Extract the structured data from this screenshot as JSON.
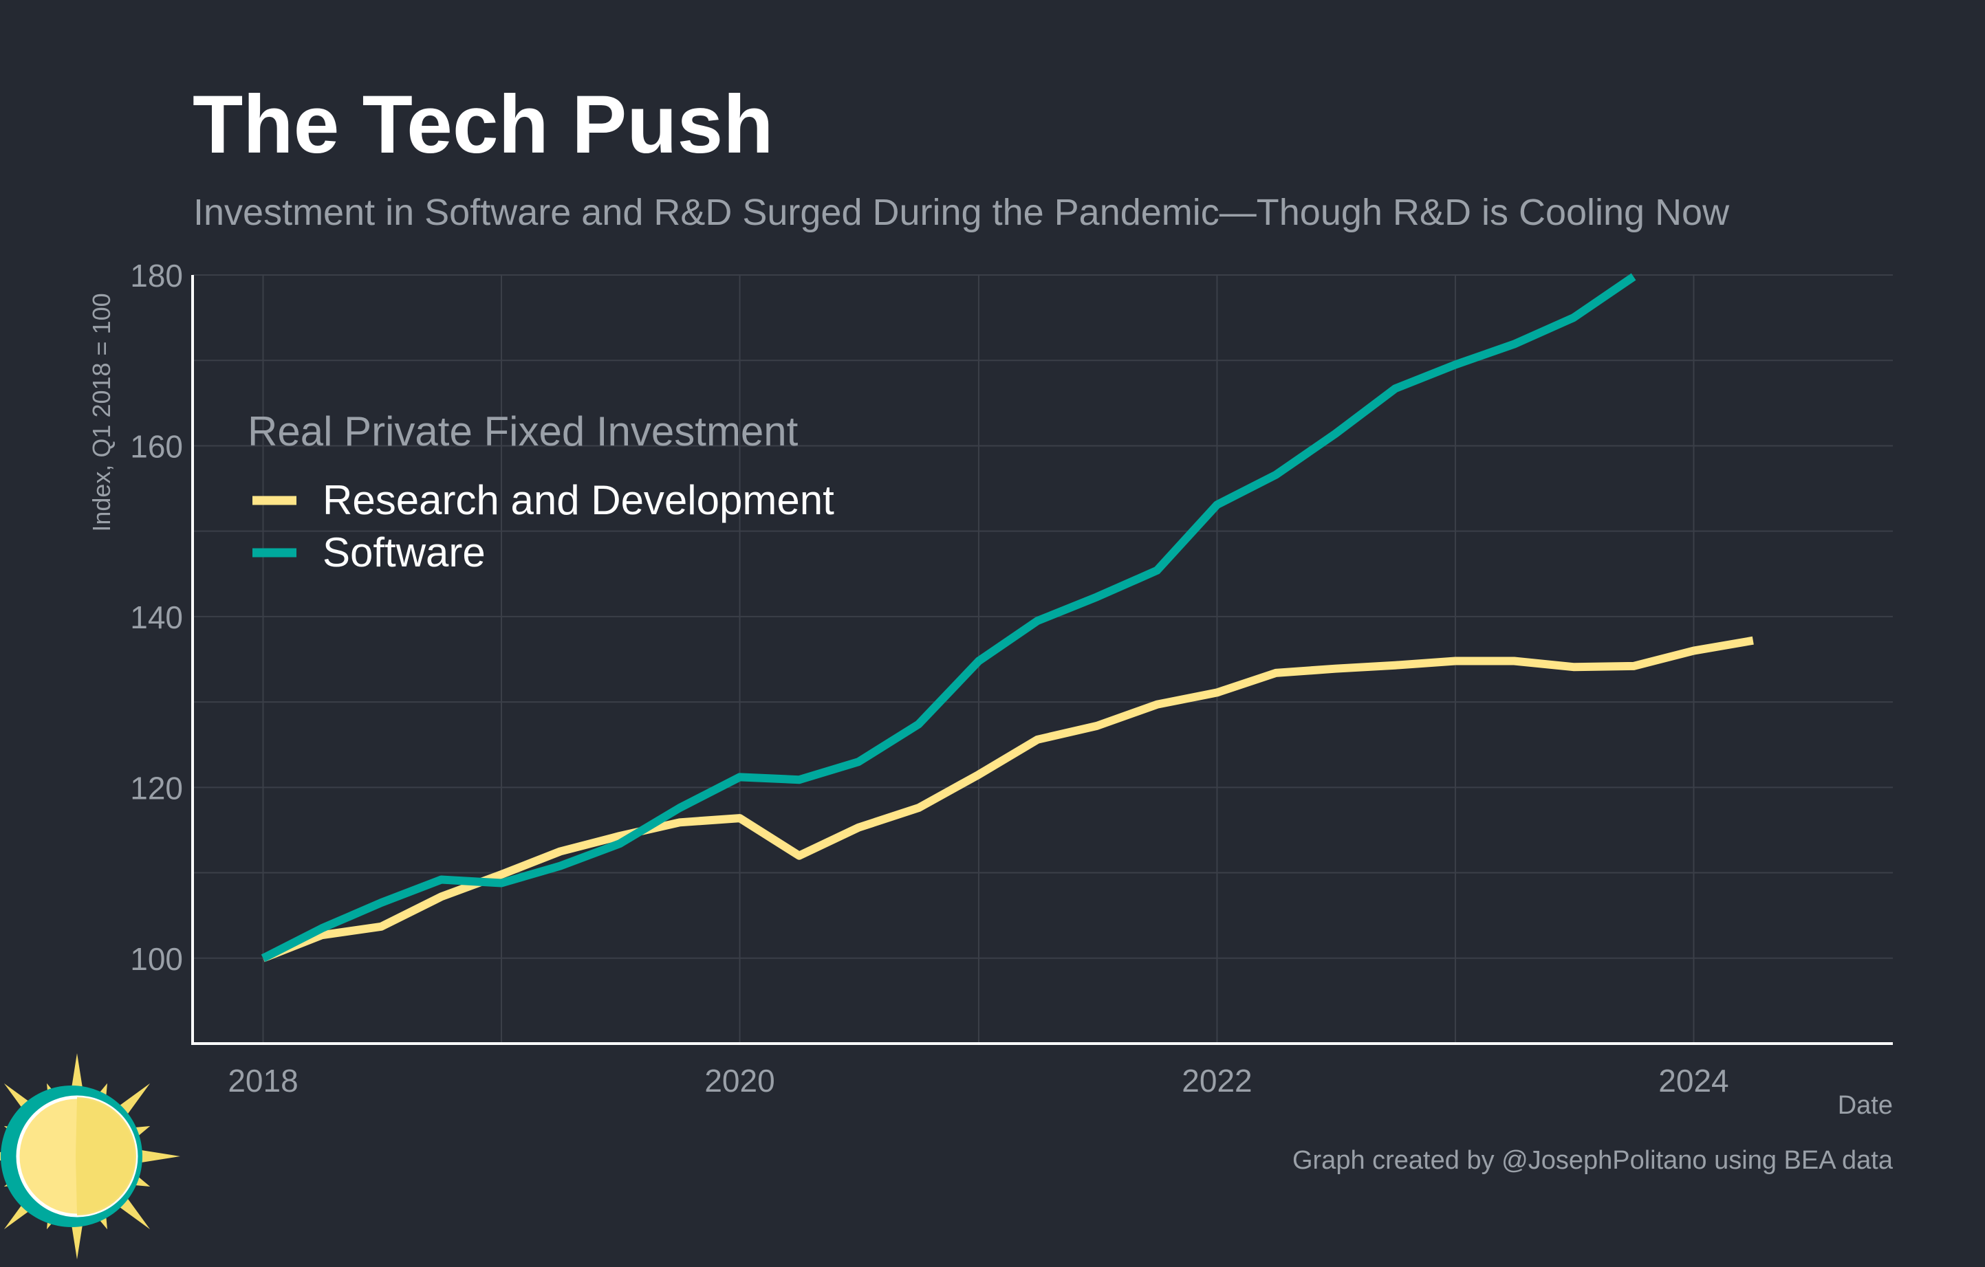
{
  "colors": {
    "background": "#252932",
    "grid": "#3b3f48",
    "axis": "#ffffff",
    "muted_text": "#9aa0a8",
    "title_text": "#ffffff",
    "rd": "#ffe589",
    "software": "#00a99d",
    "logo_sun": "#f5dd6a",
    "logo_sun_face": "#fde68a",
    "logo_ring": "#00a99d"
  },
  "chart_data": {
    "type": "line",
    "title": "The Tech Push",
    "subtitle": "Investment in Software and R&D Surged During the Pandemic—Though R&D is Cooling Now",
    "xlabel": "Date",
    "ylabel": "Index, Q1 2018 = 100",
    "xlim": [
      "2017-09-15",
      "2024-11-01"
    ],
    "ylim": [
      90,
      180
    ],
    "x_ticks": [
      "2018-01-01",
      "2020-01-01",
      "2022-01-01",
      "2024-01-01"
    ],
    "x_tick_labels": [
      "2018",
      "2020",
      "2022",
      "2024"
    ],
    "y_ticks": [
      100,
      120,
      140,
      160,
      180
    ],
    "y_tick_labels": [
      "100",
      "120",
      "140",
      "160",
      "180"
    ],
    "grid": true,
    "legend": {
      "title": "Real Private Fixed Investment",
      "placement": "top-left"
    },
    "series": [
      {
        "name": "Research and Development",
        "color": "#ffe589",
        "x": [
          "2018-01-01",
          "2018-04-01",
          "2018-07-01",
          "2018-10-01",
          "2019-01-01",
          "2019-04-01",
          "2019-07-01",
          "2019-10-01",
          "2020-01-01",
          "2020-04-01",
          "2020-07-01",
          "2020-10-01",
          "2021-01-01",
          "2021-04-01",
          "2021-07-01",
          "2021-10-01",
          "2022-01-01",
          "2022-04-01",
          "2022-07-01",
          "2022-10-01",
          "2023-01-01",
          "2023-04-01",
          "2023-07-01",
          "2023-10-01",
          "2024-01-01",
          "2024-04-01"
        ],
        "values": [
          100,
          102.7,
          103.7,
          107.2,
          109.8,
          112.5,
          114.3,
          115.9,
          116.4,
          112,
          115.3,
          117.6,
          121.5,
          125.6,
          127.2,
          129.7,
          131.1,
          133.4,
          133.9,
          134.3,
          134.8,
          134.8,
          134.1,
          134.2,
          136,
          137.2
        ]
      },
      {
        "name": "Software",
        "color": "#00a99d",
        "x": [
          "2018-01-01",
          "2018-04-01",
          "2018-07-01",
          "2018-10-01",
          "2019-01-01",
          "2019-04-01",
          "2019-07-01",
          "2019-10-01",
          "2020-01-01",
          "2020-04-01",
          "2020-07-01",
          "2020-10-01",
          "2021-01-01",
          "2021-04-01",
          "2021-07-01",
          "2021-10-01",
          "2022-01-01",
          "2022-04-01",
          "2022-07-01",
          "2022-10-01",
          "2023-01-01",
          "2023-04-01",
          "2023-07-01",
          "2023-10-01"
        ],
        "values": [
          100,
          103.5,
          106.5,
          109.2,
          108.8,
          110.8,
          113.4,
          117.6,
          121.2,
          120.9,
          123,
          127.4,
          134.8,
          139.5,
          142.3,
          145.4,
          153.1,
          156.6,
          161.4,
          166.7,
          169.5,
          171.9,
          175,
          179.8
        ]
      }
    ]
  },
  "footer": {
    "credit": "Graph created by @JosephPolitano using BEA data"
  },
  "logo": {
    "icon": "sun-logo-icon"
  }
}
